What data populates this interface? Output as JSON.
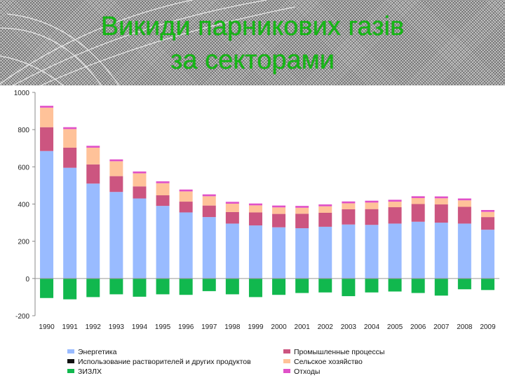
{
  "header": {
    "title_line1": "Викиди парникових газів",
    "title_line2": "за секторами"
  },
  "chart_data": {
    "type": "bar",
    "stacked": true,
    "categories": [
      "1990",
      "1991",
      "1992",
      "1993",
      "1994",
      "1995",
      "1996",
      "1997",
      "1998",
      "1999",
      "2000",
      "2001",
      "2002",
      "2003",
      "2004",
      "2005",
      "2006",
      "2007",
      "2008",
      "2009"
    ],
    "ylim": [
      -200,
      1000
    ],
    "yticks": [
      1000,
      800,
      600,
      400,
      200,
      0,
      -200
    ],
    "grid": false,
    "legend_position": "bottom",
    "series": [
      {
        "name": "Энергетика",
        "color": "#99bbff",
        "values": [
          685,
          595,
          510,
          465,
          430,
          390,
          355,
          330,
          295,
          285,
          275,
          270,
          278,
          290,
          288,
          295,
          305,
          300,
          295,
          262
        ]
      },
      {
        "name": "Промышленные процессы",
        "color": "#cc5580",
        "values": [
          128,
          108,
          103,
          85,
          65,
          57,
          58,
          62,
          62,
          70,
          72,
          78,
          75,
          82,
          85,
          88,
          95,
          98,
          90,
          68
        ]
      },
      {
        "name": "Использование растворителей и других продуктов",
        "color": "#111111",
        "values": [
          0,
          0,
          0,
          0,
          0,
          0,
          0,
          0,
          0,
          0,
          0,
          0,
          0,
          0,
          0,
          0,
          0,
          0,
          0,
          0
        ]
      },
      {
        "name": "Сельское хозяйство",
        "color": "#ffc299",
        "values": [
          105,
          100,
          90,
          80,
          70,
          65,
          55,
          50,
          45,
          38,
          35,
          32,
          35,
          32,
          35,
          30,
          32,
          33,
          35,
          28
        ]
      },
      {
        "name": "ЗИЗЛХ",
        "color": "#11b84e",
        "values": [
          -105,
          -112,
          -100,
          -85,
          -98,
          -85,
          -88,
          -68,
          -85,
          -100,
          -88,
          -78,
          -75,
          -95,
          -75,
          -70,
          -78,
          -92,
          -58,
          -62
        ]
      },
      {
        "name": "Отходы",
        "color": "#e051c8",
        "values": [
          10,
          10,
          10,
          10,
          10,
          10,
          10,
          10,
          10,
          10,
          10,
          10,
          10,
          10,
          10,
          10,
          10,
          10,
          10,
          10
        ]
      }
    ]
  }
}
